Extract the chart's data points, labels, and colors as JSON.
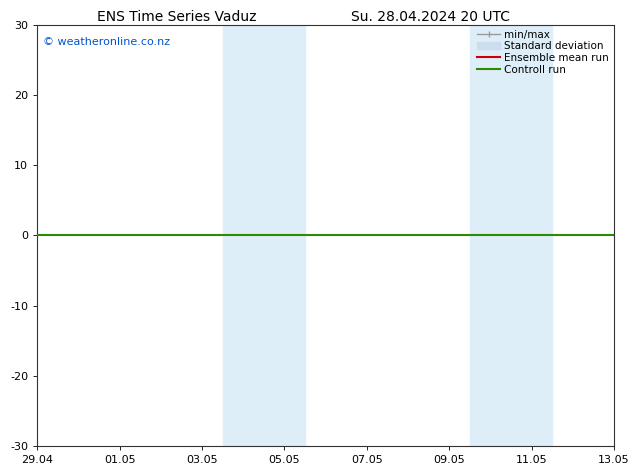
{
  "title_left": "ENS Time Series Vaduz",
  "title_right": "Su. 28.04.2024 20 UTC",
  "watermark": "© weatheronline.co.nz",
  "watermark_color": "#0055cc",
  "ylim": [
    -30,
    30
  ],
  "yticks": [
    -30,
    -20,
    -10,
    0,
    10,
    20,
    30
  ],
  "xtick_labels": [
    "29.04",
    "01.05",
    "03.05",
    "05.05",
    "07.05",
    "09.05",
    "11.05",
    "13.05"
  ],
  "xtick_positions": [
    0,
    2,
    4,
    6,
    8,
    10,
    12,
    14
  ],
  "bg_color": "#ffffff",
  "plot_bg_color": "#ffffff",
  "shaded_bands": [
    {
      "x_start": 4.5,
      "x_end": 6.5,
      "color": "#ddeef8"
    },
    {
      "x_start": 10.5,
      "x_end": 12.5,
      "color": "#ddeef8"
    }
  ],
  "hline_y": 0,
  "hline_color": "#2e8b00",
  "hline_lw": 1.5,
  "legend_entries": [
    {
      "label": "min/max",
      "color": "#999999",
      "lw": 1.0
    },
    {
      "label": "Standard deviation",
      "color": "#ccddee",
      "lw": 8
    },
    {
      "label": "Ensemble mean run",
      "color": "#cc0000",
      "lw": 1.5
    },
    {
      "label": "Controll run",
      "color": "#2e8b00",
      "lw": 1.5
    }
  ],
  "grid_color": "#dddddd",
  "axis_spine_color": "#333333",
  "title_fontsize": 10,
  "tick_fontsize": 8,
  "legend_fontsize": 7.5,
  "watermark_fontsize": 8,
  "x_num_days": 14
}
